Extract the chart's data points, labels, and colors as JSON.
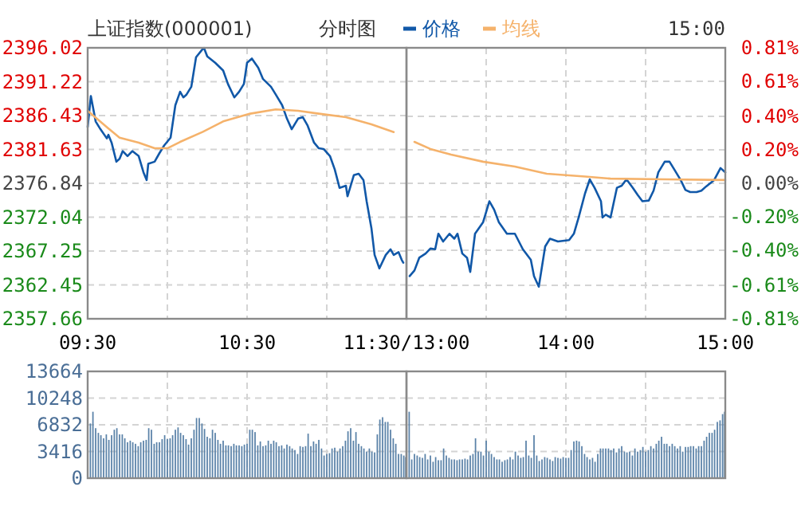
{
  "chart_data": [
    {
      "type": "line",
      "title": "上证指数(000001)",
      "subtitle": "分时图",
      "legend": "top",
      "grid": true,
      "xlim": [
        9.5,
        11.5
      ],
      "xticks": [
        {
          "value": 9.5,
          "label": "09:30"
        },
        {
          "value": 10,
          "label": null
        },
        {
          "value": 10.5,
          "label": "10:30"
        },
        {
          "value": 11,
          "label": null
        },
        {
          "value": 11.5,
          "label": "11:30/13:00"
        }
      ],
      "ylim": [
        2357.66,
        2396.02
      ],
      "yticks": [
        2357.66,
        2362.45,
        2367.25,
        2372.04,
        2376.84,
        2381.63,
        2386.43,
        2391.22,
        2396.02
      ],
      "series": [
        {
          "name": "价格",
          "color": "#1158a8",
          "x": [
            9.5,
            9.52,
            9.55,
            9.58,
            9.62,
            9.63,
            9.65,
            9.68,
            9.7,
            9.72,
            9.75,
            9.78,
            9.82,
            9.85,
            9.87,
            9.88,
            9.92,
            9.95,
            9.98,
            10.02,
            10.05,
            10.08,
            10.1,
            10.12,
            10.15,
            10.18,
            10.22,
            10.23,
            10.25,
            10.3,
            10.35,
            10.38,
            10.42,
            10.45,
            10.48,
            10.5,
            10.53,
            10.57,
            10.6,
            10.65,
            10.68,
            10.72,
            10.75,
            10.78,
            10.82,
            10.85,
            10.88,
            10.92,
            10.95,
            10.98,
            11.02,
            11.05,
            11.08,
            11.12,
            11.13,
            11.17,
            11.2,
            11.23,
            11.25,
            11.28,
            11.3,
            11.33,
            11.37,
            11.4,
            11.42,
            11.45,
            11.47,
            11.48
          ],
          "values": [
            2384.8,
            2389.2,
            2385.6,
            2384.5,
            2383.2,
            2383.7,
            2382.6,
            2379.9,
            2380.3,
            2381.4,
            2380.7,
            2381.4,
            2380.7,
            2378.4,
            2377.3,
            2379.6,
            2379.9,
            2381.1,
            2382.2,
            2383.3,
            2387.9,
            2389.8,
            2389.0,
            2389.4,
            2390.5,
            2394.7,
            2395.8,
            2396.0,
            2394.8,
            2393.9,
            2392.8,
            2390.9,
            2389.0,
            2389.8,
            2390.9,
            2393.9,
            2394.5,
            2393.2,
            2391.6,
            2390.5,
            2389.4,
            2387.9,
            2386.0,
            2384.5,
            2386.0,
            2386.2,
            2385.0,
            2382.6,
            2381.8,
            2381.7,
            2380.7,
            2378.8,
            2376.2,
            2376.5,
            2375.0,
            2378.0,
            2378.2,
            2377.3,
            2374.3,
            2370.5,
            2366.7,
            2364.8,
            2366.7,
            2367.5,
            2366.7,
            2367.1,
            2366.0,
            2365.6
          ]
        },
        {
          "name": "均线",
          "color": "#f5b26b",
          "x": [
            9.5,
            9.62,
            9.7,
            9.82,
            9.92,
            10,
            10.08,
            10.22,
            10.35,
            10.52,
            10.68,
            10.82,
            10.95,
            11.12,
            11.28,
            11.42
          ],
          "values": [
            2387.1,
            2384.8,
            2383.3,
            2382.6,
            2381.8,
            2381.8,
            2382.7,
            2384.1,
            2385.6,
            2386.7,
            2387.3,
            2387.1,
            2386.7,
            2386.2,
            2385.2,
            2384.1
          ]
        }
      ]
    },
    {
      "type": "line",
      "annotations": [
        "15:00"
      ],
      "grid": true,
      "xlim": [
        13,
        15
      ],
      "xticks": [
        {
          "value": 13,
          "label": null
        },
        {
          "value": 13.5,
          "label": null
        },
        {
          "value": 14,
          "label": "14:00"
        },
        {
          "value": 14.5,
          "label": null
        },
        {
          "value": 15,
          "label": "15:00"
        }
      ],
      "ylim": [
        2357.66,
        2396.02
      ],
      "y2lim": [
        -0.81,
        0.81
      ],
      "y2ticks": [
        {
          "value": -0.81,
          "label": "-0.81%"
        },
        {
          "value": -0.61,
          "label": "-0.61%"
        },
        {
          "value": -0.4,
          "label": "-0.40%"
        },
        {
          "value": -0.2,
          "label": "-0.20%"
        },
        {
          "value": 0,
          "label": "0.00%"
        },
        {
          "value": 0.2,
          "label": "0.20%"
        },
        {
          "value": 0.4,
          "label": "0.40%"
        },
        {
          "value": 0.61,
          "label": "0.61%"
        },
        {
          "value": 0.81,
          "label": "0.81%"
        }
      ],
      "series": [
        {
          "color": "#1158a8",
          "x": [
            13.02,
            13.05,
            13.08,
            13.12,
            13.15,
            13.18,
            13.2,
            13.23,
            13.27,
            13.3,
            13.32,
            13.35,
            13.38,
            13.4,
            13.43,
            13.48,
            13.5,
            13.52,
            13.55,
            13.58,
            13.63,
            13.68,
            13.73,
            13.78,
            13.8,
            13.83,
            13.87,
            13.9,
            13.95,
            14.02,
            14.05,
            14.08,
            14.12,
            14.15,
            14.18,
            14.22,
            14.23,
            14.25,
            14.28,
            14.32,
            14.35,
            14.38,
            14.42,
            14.45,
            14.48,
            14.52,
            14.55,
            14.58,
            14.62,
            14.65,
            14.68,
            14.72,
            14.75,
            14.78,
            14.82,
            14.85,
            14.88,
            14.93,
            14.97,
            15
          ],
          "values": [
            2363.7,
            2364.5,
            2366.3,
            2366.9,
            2367.6,
            2367.5,
            2369.7,
            2368.6,
            2369.7,
            2369.0,
            2369.7,
            2366.9,
            2366.3,
            2364.3,
            2369.7,
            2371.3,
            2372.8,
            2374.3,
            2373.1,
            2371.3,
            2369.7,
            2369.7,
            2367.5,
            2366.0,
            2363.7,
            2362.2,
            2367.9,
            2369.0,
            2368.6,
            2368.8,
            2369.7,
            2372.0,
            2375.4,
            2377.4,
            2376.2,
            2374.3,
            2372.0,
            2372.4,
            2372.0,
            2376.2,
            2376.5,
            2377.4,
            2376.2,
            2375.2,
            2374.3,
            2374.4,
            2375.8,
            2378.4,
            2379.9,
            2379.9,
            2378.8,
            2377.3,
            2375.9,
            2375.6,
            2375.6,
            2375.8,
            2376.4,
            2377.3,
            2379.0,
            2378.4
          ]
        },
        {
          "color": "#f5b26b",
          "x": [
            13.05,
            13.15,
            13.28,
            13.48,
            13.68,
            13.88,
            14.12,
            14.28,
            14.62,
            15
          ],
          "values": [
            2382.7,
            2381.7,
            2380.9,
            2379.9,
            2379.2,
            2378.2,
            2377.8,
            2377.5,
            2377.4,
            2377.3
          ]
        }
      ]
    },
    {
      "type": "bar",
      "color": "#5a82a8",
      "grid": true,
      "tick_labels": "y",
      "xlim": [
        9.5,
        11.5
      ],
      "xticks": [
        9.5,
        10,
        10.5,
        11,
        11.5
      ],
      "ylim": [
        0,
        13664
      ],
      "yticks": [
        0,
        3416,
        6832,
        10248,
        13664
      ],
      "x": [
        9.517,
        9.533,
        9.55,
        9.567,
        9.583,
        9.6,
        9.617,
        9.633,
        9.65,
        9.667,
        9.683,
        9.7,
        9.717,
        9.733,
        9.75,
        9.767,
        9.783,
        9.8,
        9.817,
        9.833,
        9.85,
        9.867,
        9.883,
        9.9,
        9.917,
        9.933,
        9.95,
        9.967,
        9.983,
        10,
        10.017,
        10.033,
        10.05,
        10.067,
        10.083,
        10.1,
        10.117,
        10.133,
        10.15,
        10.167,
        10.183,
        10.2,
        10.217,
        10.233,
        10.25,
        10.267,
        10.283,
        10.3,
        10.317,
        10.333,
        10.35,
        10.367,
        10.383,
        10.4,
        10.417,
        10.433,
        10.45,
        10.467,
        10.483,
        10.5,
        10.517,
        10.533,
        10.55,
        10.567,
        10.583,
        10.6,
        10.617,
        10.633,
        10.65,
        10.667,
        10.683,
        10.7,
        10.717,
        10.733,
        10.75,
        10.767,
        10.783,
        10.8,
        10.817,
        10.833,
        10.85,
        10.867,
        10.883,
        10.9,
        10.917,
        10.933,
        10.95,
        10.967,
        10.983,
        11,
        11.017,
        11.033,
        11.05,
        11.067,
        11.083,
        11.1,
        11.117,
        11.133,
        11.15,
        11.167,
        11.183,
        11.2,
        11.217,
        11.233,
        11.25,
        11.267,
        11.283,
        11.3,
        11.317,
        11.333,
        11.35,
        11.367,
        11.383,
        11.4,
        11.417,
        11.433,
        11.45,
        11.467,
        11.483,
        11.5
      ],
      "values": [
        7000,
        8500,
        6400,
        5800,
        5500,
        5100,
        5600,
        4900,
        5500,
        6200,
        6400,
        5600,
        5600,
        5100,
        4600,
        4800,
        4600,
        4400,
        4100,
        4600,
        4800,
        4900,
        6400,
        6200,
        4400,
        4600,
        4600,
        5000,
        5500,
        5000,
        5100,
        5500,
        6200,
        6500,
        5800,
        5500,
        5000,
        4300,
        5100,
        6200,
        7700,
        7700,
        7000,
        6300,
        5300,
        5100,
        6200,
        5800,
        4900,
        4400,
        4800,
        4200,
        4200,
        4100,
        4400,
        4200,
        4200,
        4100,
        4300,
        4400,
        6200,
        6200,
        5900,
        4200,
        4700,
        4100,
        4200,
        4800,
        4400,
        4800,
        4600,
        4100,
        4200,
        3800,
        4300,
        4100,
        3800,
        3600,
        3100,
        4100,
        4000,
        4100,
        5700,
        4100,
        4700,
        4400,
        4900,
        3800,
        2900,
        3100,
        3200,
        3800,
        3900,
        3400,
        3800,
        4100,
        4800,
        6000,
        6400,
        4800,
        5900,
        4400,
        4100,
        3800,
        3400,
        3800,
        3400,
        3300,
        5600,
        7500,
        7800,
        7200,
        7200,
        6200,
        5100,
        4400,
        3100,
        3100,
        2900,
        2700
      ]
    },
    {
      "type": "bar",
      "color": "#5a82a8",
      "grid": true,
      "tick_labels": false,
      "xlim": [
        13,
        15
      ],
      "xticks": [
        13,
        13.5,
        14,
        14.5,
        15
      ],
      "ylim": [
        0,
        13664
      ],
      "yticks": [
        0,
        3416,
        6832,
        10248,
        13664
      ],
      "x": [
        13.017,
        13.033,
        13.05,
        13.067,
        13.083,
        13.1,
        13.117,
        13.133,
        13.15,
        13.167,
        13.183,
        13.2,
        13.217,
        13.233,
        13.25,
        13.267,
        13.283,
        13.3,
        13.317,
        13.333,
        13.35,
        13.367,
        13.383,
        13.4,
        13.417,
        13.433,
        13.45,
        13.467,
        13.483,
        13.5,
        13.517,
        13.533,
        13.55,
        13.567,
        13.583,
        13.6,
        13.617,
        13.633,
        13.65,
        13.667,
        13.683,
        13.7,
        13.717,
        13.733,
        13.75,
        13.767,
        13.783,
        13.8,
        13.817,
        13.833,
        13.85,
        13.867,
        13.883,
        13.9,
        13.917,
        13.933,
        13.95,
        13.967,
        13.983,
        14,
        14.017,
        14.033,
        14.05,
        14.067,
        14.083,
        14.1,
        14.117,
        14.133,
        14.15,
        14.167,
        14.183,
        14.2,
        14.217,
        14.233,
        14.25,
        14.267,
        14.283,
        14.3,
        14.317,
        14.333,
        14.35,
        14.367,
        14.383,
        14.4,
        14.417,
        14.433,
        14.45,
        14.467,
        14.483,
        14.5,
        14.517,
        14.533,
        14.55,
        14.567,
        14.583,
        14.6,
        14.617,
        14.633,
        14.65,
        14.667,
        14.683,
        14.7,
        14.717,
        14.733,
        14.75,
        14.767,
        14.783,
        14.8,
        14.817,
        14.833,
        14.85,
        14.867,
        14.883,
        14.9,
        14.917,
        14.933,
        14.95,
        14.967,
        14.983,
        15
      ],
      "values": [
        8500,
        2400,
        3100,
        2900,
        2700,
        2600,
        3100,
        2400,
        2900,
        2100,
        2700,
        2300,
        2300,
        3800,
        2900,
        2600,
        2400,
        2400,
        2300,
        2400,
        2400,
        2500,
        2400,
        2900,
        3100,
        5100,
        3400,
        3400,
        2900,
        4800,
        3400,
        3100,
        2700,
        2400,
        2400,
        2100,
        2300,
        2400,
        2700,
        2400,
        3400,
        2900,
        2600,
        2700,
        4800,
        2900,
        2600,
        5500,
        2900,
        2200,
        2400,
        2700,
        2600,
        2400,
        2200,
        2700,
        2600,
        2500,
        2700,
        2600,
        2600,
        3600,
        4700,
        4800,
        4700,
        4100,
        3100,
        2700,
        2400,
        2600,
        2100,
        3100,
        3800,
        3800,
        3800,
        3800,
        3600,
        3800,
        3300,
        3800,
        4100,
        3400,
        3300,
        3400,
        2900,
        3800,
        3400,
        3600,
        4000,
        3400,
        3600,
        4100,
        3800,
        4400,
        4800,
        5300,
        4400,
        4400,
        4100,
        4400,
        4100,
        3800,
        4100,
        3400,
        4000,
        4000,
        4100,
        4100,
        3800,
        4100,
        4100,
        4800,
        5300,
        5800,
        5800,
        6200,
        7200,
        7400,
        8200,
        8500
      ]
    }
  ]
}
